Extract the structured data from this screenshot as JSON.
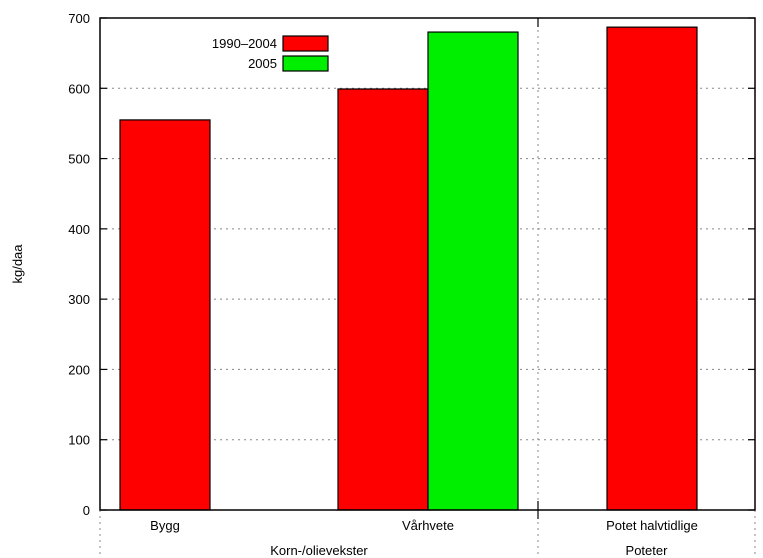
{
  "chart_data": {
    "type": "bar",
    "title": "",
    "xlabel": "",
    "ylabel": "kg/daa",
    "ylim": [
      0,
      700
    ],
    "yticks": [
      0,
      100,
      200,
      300,
      400,
      500,
      600,
      700
    ],
    "grid": true,
    "legend_position": "top-left",
    "categories": [
      "Bygg",
      "Vårhvete",
      "Potet halvtidlige"
    ],
    "groups": [
      {
        "label": "Korn-/olievekster",
        "categories": [
          "Bygg",
          "Vårhvete"
        ]
      },
      {
        "label": "Poteter",
        "categories": [
          "Potet halvtidlige"
        ]
      }
    ],
    "series": [
      {
        "name": "1990–2004",
        "color": "#ff0000",
        "values": [
          555,
          599,
          687
        ]
      },
      {
        "name": "2005",
        "color": "#00ee00",
        "values": [
          null,
          680,
          null
        ]
      }
    ]
  }
}
